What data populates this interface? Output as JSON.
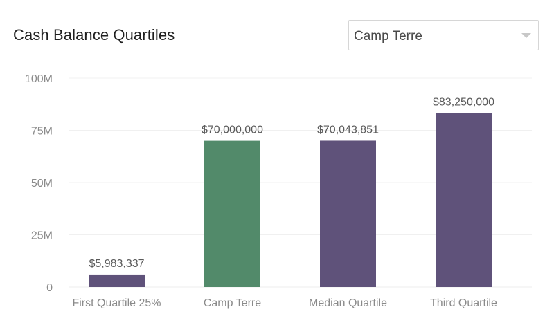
{
  "header": {
    "title": "Cash Balance Quartiles"
  },
  "filter": {
    "selected": "Camp Terre",
    "icon": "chevron-down-icon"
  },
  "chart_data": {
    "type": "bar",
    "categories": [
      "First Quartile 25%",
      "Camp Terre",
      "Median Quartile",
      "Third Quartile"
    ],
    "values": [
      5983337,
      70000000,
      70043851,
      83250000
    ],
    "data_labels": [
      "$5,983,337",
      "$70,000,000",
      "$70,043,851",
      "$83,250,000"
    ],
    "colors": [
      "#5f527a",
      "#528a6a",
      "#5f527a",
      "#5f527a"
    ],
    "ylim": [
      0,
      100000000
    ],
    "yticks": [
      0,
      25000000,
      50000000,
      75000000,
      100000000
    ],
    "ytick_labels": [
      "0",
      "25M",
      "50M",
      "75M",
      "100M"
    ],
    "grid": true,
    "legend": false
  }
}
